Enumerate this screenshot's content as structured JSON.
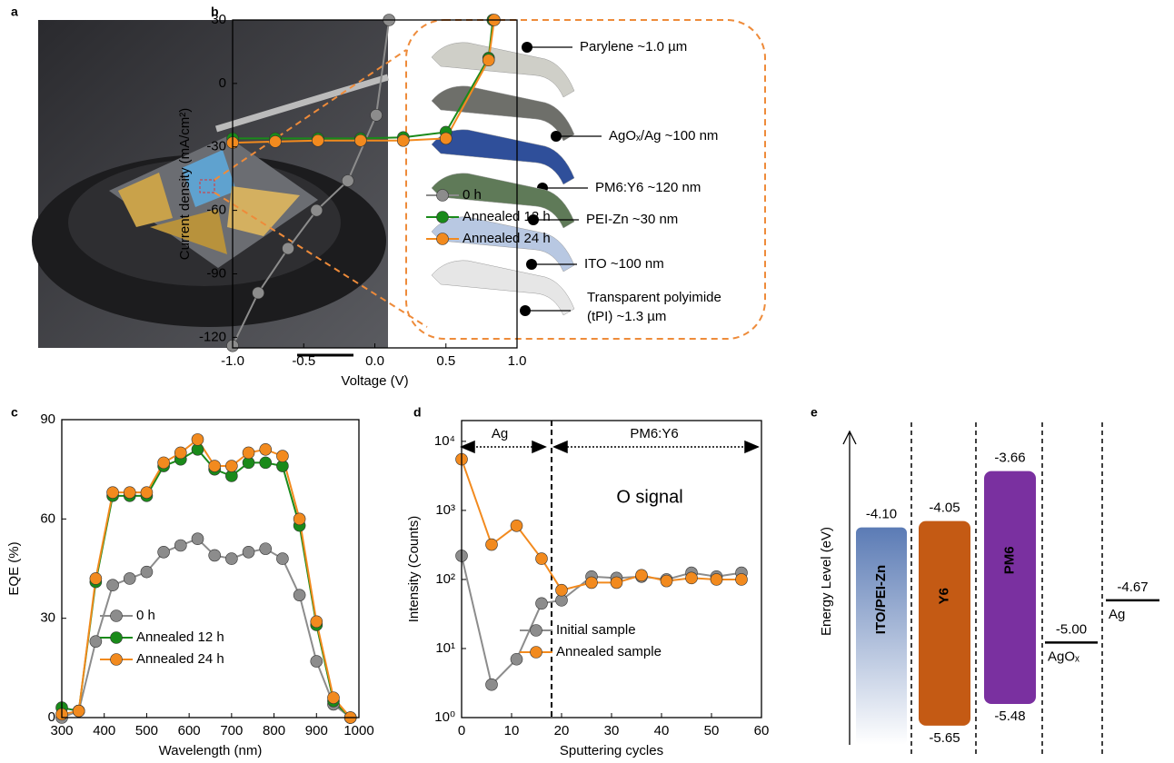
{
  "panels": [
    "a",
    "b",
    "c",
    "d",
    "e"
  ],
  "panel_a": {
    "layers": [
      [
        "Parylene  ~1.0 µm"
      ],
      [
        "AgOₓ/Ag ~100 nm"
      ],
      [
        "PM6:Y6 ~120 nm"
      ],
      [
        "PEI-Zn  ~30 nm"
      ],
      [
        "ITO  ~100 nm"
      ],
      [
        "Transparent polyimide",
        "(tPI) ~1.3 µm"
      ]
    ]
  },
  "chart_data": [
    {
      "type": "line",
      "x_label": "Voltage (V)",
      "y_label": "Current density (mA/cm²)",
      "xlim": [
        -1.0,
        1.0
      ],
      "xticks": [
        {
          "value": -1,
          "label": "-1.0"
        },
        {
          "value": -0.5,
          "label": "-0.5"
        },
        {
          "value": 0,
          "label": "0.0"
        },
        {
          "value": 0.5,
          "label": "0.5"
        },
        {
          "value": 1,
          "label": "1.0"
        }
      ],
      "ylim": [
        -125,
        30
      ],
      "yticks": [
        30,
        0,
        -30,
        -60,
        -90,
        -120
      ],
      "legend": "center right",
      "series": [
        {
          "name": "0 h",
          "color": "#8c8c8c",
          "x": [
            -1.0,
            -0.82,
            -0.61,
            -0.41,
            -0.19,
            0.01,
            0.1
          ],
          "values": [
            -124,
            -99,
            -78,
            -60,
            -46,
            -15,
            30
          ]
        },
        {
          "name": "Annealed 12 h",
          "color": "#1a8a1a",
          "x": [
            -1.0,
            -0.7,
            -0.4,
            -0.1,
            0.2,
            0.5,
            0.8,
            0.83
          ],
          "values": [
            -26,
            -26,
            -26,
            -26,
            -25.5,
            -23,
            12,
            30
          ]
        },
        {
          "name": "Annealed 24 h",
          "color": "#f28a1e",
          "x": [
            -1.0,
            -0.7,
            -0.4,
            -0.1,
            0.2,
            0.5,
            0.8,
            0.84
          ],
          "values": [
            -28,
            -27.5,
            -27,
            -27,
            -27,
            -26,
            11,
            30
          ]
        }
      ]
    },
    {
      "type": "line",
      "x_label": "Wavelength (nm)",
      "y_label": "EQE (%)",
      "xlim": [
        300,
        1000
      ],
      "xticks": [
        300,
        400,
        500,
        600,
        700,
        800,
        900,
        1000
      ],
      "ylim": [
        0,
        90
      ],
      "yticks": [
        0,
        30,
        60,
        90
      ],
      "legend": "lower left",
      "series": [
        {
          "name": "0 h",
          "color": "#8c8c8c",
          "x": [
            300,
            340,
            380,
            420,
            460,
            500,
            540,
            580,
            620,
            660,
            700,
            740,
            780,
            820,
            860,
            900,
            940,
            980
          ],
          "values": [
            0,
            2,
            23,
            40,
            42,
            44,
            50,
            52,
            54,
            49,
            48,
            50,
            51,
            48,
            37,
            17,
            4,
            0
          ]
        },
        {
          "name": "Annealed 12 h",
          "color": "#1a8a1a",
          "x": [
            300,
            340,
            380,
            420,
            460,
            500,
            540,
            580,
            620,
            660,
            700,
            740,
            780,
            820,
            860,
            900,
            940,
            980
          ],
          "values": [
            3,
            2,
            41,
            67,
            67,
            67,
            76,
            78,
            81,
            75,
            73,
            77,
            77,
            76,
            58,
            28,
            5,
            0
          ]
        },
        {
          "name": "Annealed 24 h",
          "color": "#f28a1e",
          "x": [
            300,
            340,
            380,
            420,
            460,
            500,
            540,
            580,
            620,
            660,
            700,
            740,
            780,
            820,
            860,
            900,
            940,
            980
          ],
          "values": [
            1,
            2,
            42,
            68,
            68,
            68,
            77,
            80,
            84,
            76,
            76,
            80,
            81,
            79,
            60,
            29,
            6,
            0
          ]
        }
      ]
    },
    {
      "type": "line",
      "x_label": "Sputtering cycles",
      "y_label": "Intensity (Counts)",
      "log_y": true,
      "xlim": [
        0,
        60
      ],
      "xticks": [
        0,
        10,
        20,
        30,
        40,
        50,
        60
      ],
      "ylim": [
        1,
        20000
      ],
      "yticks": [
        {
          "value": 1,
          "label": "10⁰"
        },
        {
          "value": 10,
          "label": "10¹"
        },
        {
          "value": 100,
          "label": "10²"
        },
        {
          "value": 1000,
          "label": "10³"
        },
        {
          "value": 10000,
          "label": "10⁴"
        }
      ],
      "legend": "lower center",
      "annotations": [
        "Ag",
        "PM6:Y6",
        "O signal"
      ],
      "series": [
        {
          "name": "Initial sample",
          "color": "#8c8c8c",
          "x": [
            0,
            6,
            11,
            16,
            20,
            26,
            31,
            36,
            41,
            46,
            51,
            56
          ],
          "values": [
            220,
            3,
            7,
            45,
            50,
            110,
            105,
            110,
            100,
            125,
            110,
            125
          ]
        },
        {
          "name": "Annealed sample",
          "color": "#f28a1e",
          "x": [
            0,
            6,
            11,
            16,
            20,
            26,
            31,
            36,
            41,
            46,
            51,
            56
          ],
          "values": [
            5500,
            320,
            600,
            200,
            70,
            90,
            90,
            115,
            95,
            105,
            100,
            100
          ]
        }
      ]
    },
    {
      "type": "energy",
      "y_label": "Energy Level (eV)",
      "ylim": [
        -5.8,
        -3.35
      ],
      "levels": [
        {
          "name": "ITO/PEI-Zn",
          "color": "#5b7bb5",
          "top": {
            "value": -4.1,
            "label": "-4.10"
          }
        },
        {
          "name": "Y6",
          "color": "#c45a14",
          "top": {
            "value": -4.05,
            "label": "-4.05"
          },
          "bottom": {
            "value": -5.65,
            "label": "-5.65"
          }
        },
        {
          "name": "PM6",
          "color": "#7a30a0",
          "top": {
            "value": -3.66,
            "label": "-3.66"
          },
          "bottom": {
            "value": -5.48,
            "label": "-5.48"
          }
        },
        {
          "name": "AgOₓ",
          "color": "#000000",
          "top": {
            "value": -5.0,
            "label": "-5.00"
          }
        },
        {
          "name": "Ag",
          "color": "#000000",
          "top": {
            "value": -4.67,
            "label": "-4.67"
          }
        }
      ]
    }
  ]
}
